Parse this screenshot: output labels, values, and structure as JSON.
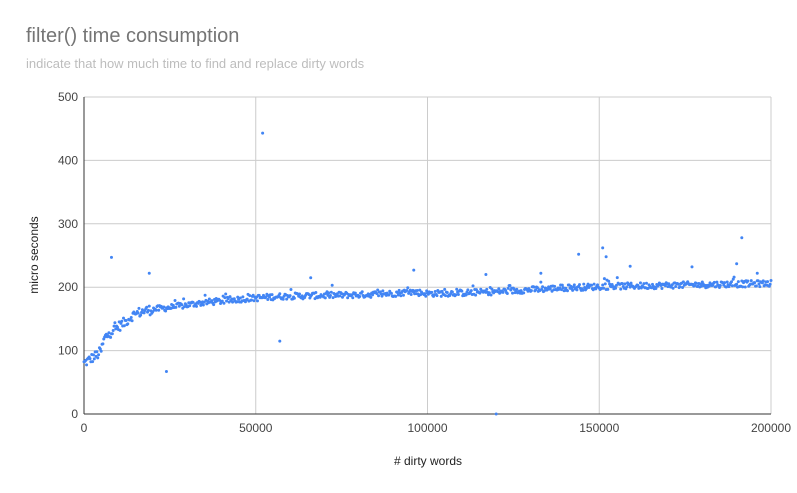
{
  "chart_data": {
    "type": "scatter",
    "title": "filter() time consumption",
    "subtitle": "indicate that how much time to find and replace dirty words",
    "xlabel": "# dirty words",
    "ylabel": "micro seconds",
    "xlim": [
      0,
      200000
    ],
    "ylim": [
      0,
      500
    ],
    "x_ticks": [
      "0",
      "50000",
      "100000",
      "150000",
      "200000"
    ],
    "y_ticks": [
      "0",
      "100",
      "200",
      "300",
      "400",
      "500"
    ],
    "grid": true,
    "legend": "none",
    "colors": {
      "point": "#4285f4",
      "grid": "#cccccc",
      "axis": "#333333"
    },
    "trend_points": [
      [
        0,
        80
      ],
      [
        2000,
        87
      ],
      [
        4000,
        94
      ],
      [
        5000,
        100
      ],
      [
        6000,
        120
      ],
      [
        8000,
        130
      ],
      [
        10000,
        138
      ],
      [
        12000,
        145
      ],
      [
        14000,
        155
      ],
      [
        16000,
        160
      ],
      [
        18000,
        163
      ],
      [
        20000,
        165
      ],
      [
        25000,
        168
      ],
      [
        30000,
        172
      ],
      [
        35000,
        176
      ],
      [
        40000,
        178
      ],
      [
        45000,
        181
      ],
      [
        50000,
        183
      ],
      [
        55000,
        185
      ],
      [
        60000,
        186
      ],
      [
        70000,
        187
      ],
      [
        80000,
        188
      ],
      [
        90000,
        190
      ],
      [
        95000,
        193
      ],
      [
        100000,
        190
      ],
      [
        110000,
        191
      ],
      [
        120000,
        193
      ],
      [
        130000,
        196
      ],
      [
        140000,
        199
      ],
      [
        150000,
        201
      ],
      [
        160000,
        202
      ],
      [
        170000,
        203
      ],
      [
        180000,
        204
      ],
      [
        190000,
        205
      ],
      [
        200000,
        206
      ]
    ],
    "outliers": [
      {
        "x": 8000,
        "y": 247
      },
      {
        "x": 19000,
        "y": 222
      },
      {
        "x": 24000,
        "y": 67
      },
      {
        "x": 52000,
        "y": 443
      },
      {
        "x": 57000,
        "y": 115
      },
      {
        "x": 66000,
        "y": 215
      },
      {
        "x": 96000,
        "y": 227
      },
      {
        "x": 117000,
        "y": 220
      },
      {
        "x": 120000,
        "y": 0
      },
      {
        "x": 133000,
        "y": 222
      },
      {
        "x": 144000,
        "y": 252
      },
      {
        "x": 151000,
        "y": 262
      },
      {
        "x": 152000,
        "y": 248
      },
      {
        "x": 159000,
        "y": 233
      },
      {
        "x": 177000,
        "y": 232
      },
      {
        "x": 190000,
        "y": 237
      },
      {
        "x": 191500,
        "y": 278
      },
      {
        "x": 196000,
        "y": 222
      }
    ]
  }
}
